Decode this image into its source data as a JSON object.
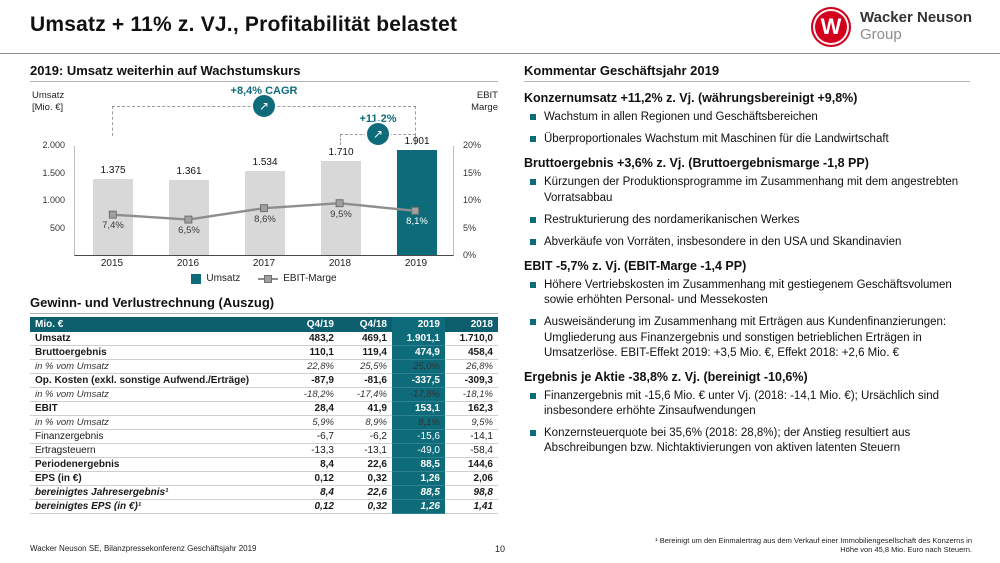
{
  "meta": {
    "colors": {
      "accent": "#0e6b7a",
      "accent-dark": "#0d5f6e",
      "brand-red": "#d2001c",
      "bar-gray": "#d8d8d8",
      "line-gray": "#8e8e8e"
    },
    "icons": {
      "growth_arrow": "↗"
    }
  },
  "header": {
    "title": "Umsatz + 11% z. VJ., Profitabilität belastet",
    "logo": {
      "letter": "W",
      "name": "Wacker Neuson",
      "sub": "Group"
    }
  },
  "left": {
    "chart_heading": "2019: Umsatz weiterhin auf Wachstumskurs",
    "axis_left": [
      "Umsatz",
      "[Mio. €]"
    ],
    "axis_right": [
      "EBIT",
      "Marge"
    ],
    "legend": [
      "Umsatz",
      "EBIT-Marge"
    ],
    "table_heading": "Gewinn- und Verlustrechnung (Auszug)"
  },
  "chart_data": {
    "type": "bar+line",
    "categories": [
      "2015",
      "2016",
      "2017",
      "2018",
      "2019"
    ],
    "series": [
      {
        "name": "Umsatz",
        "type": "bar",
        "axis": "left",
        "values": [
          1375,
          1361,
          1534,
          1710,
          1901
        ],
        "labels": [
          "1.375",
          "1.361",
          "1.534",
          "1.710",
          "1.901"
        ]
      },
      {
        "name": "EBIT-Marge",
        "type": "line",
        "axis": "right",
        "values": [
          7.4,
          6.5,
          8.6,
          9.5,
          8.1
        ],
        "labels": [
          "7,4%",
          "6,5%",
          "8,6%",
          "9,5%",
          "8,1%"
        ]
      }
    ],
    "left_axis": {
      "title": "Umsatz [Mio. €]",
      "max": 2000,
      "ticks": [
        {
          "label": "2.000",
          "value": 2000
        },
        {
          "label": "1.500",
          "value": 1500
        },
        {
          "label": "1.000",
          "value": 1000
        },
        {
          "label": "500",
          "value": 500
        }
      ]
    },
    "right_axis": {
      "title": "EBIT Marge",
      "max": 20,
      "ticks": [
        {
          "label": "20%",
          "value": 20
        },
        {
          "label": "15%",
          "value": 15
        },
        {
          "label": "10%",
          "value": 10
        },
        {
          "label": "5%",
          "value": 5
        },
        {
          "label": "0%",
          "value": 0
        }
      ]
    },
    "annotations": [
      {
        "label": "+8,4% CAGR",
        "from": "2015",
        "to": "2019"
      },
      {
        "label": "+11,2%",
        "from": "2018",
        "to": "2019"
      }
    ],
    "highlight_category": "2019",
    "legend_position": "bottom",
    "grid": false
  },
  "table": {
    "columns": [
      "Mio. €",
      "Q4/19",
      "Q4/18",
      "2019",
      "2018"
    ],
    "highlight_column": "2019",
    "rows": [
      {
        "label": "Umsatz",
        "style": "bold",
        "cells": [
          "483,2",
          "469,1",
          "1.901,1",
          "1.710,0"
        ]
      },
      {
        "label": "Bruttoergebnis",
        "style": "bold",
        "cells": [
          "110,1",
          "119,4",
          "474,9",
          "458,4"
        ]
      },
      {
        "label": "in % vom Umsatz",
        "style": "italic",
        "cells": [
          "22,8%",
          "25,5%",
          "25,0%",
          "26,8%"
        ]
      },
      {
        "label": "Op. Kosten (exkl. sonstige Aufwend./Erträge)",
        "style": "bold",
        "cells": [
          "-87,9",
          "-81,6",
          "-337,5",
          "-309,3"
        ]
      },
      {
        "label": "in % vom Umsatz",
        "style": "italic",
        "cells": [
          "-18,2%",
          "-17,4%",
          "-17,8%",
          "-18,1%"
        ]
      },
      {
        "label": "EBIT",
        "style": "bold",
        "cells": [
          "28,4",
          "41,9",
          "153,1",
          "162,3"
        ]
      },
      {
        "label": "in % vom Umsatz",
        "style": "italic",
        "cells": [
          "5,9%",
          "8,9%",
          "8,1%",
          "9,5%"
        ]
      },
      {
        "label": "Finanzergebnis",
        "style": "normal",
        "cells": [
          "-6,7",
          "-6,2",
          "-15,6",
          "-14,1"
        ]
      },
      {
        "label": "Ertragsteuern",
        "style": "normal",
        "cells": [
          "-13,3",
          "-13,1",
          "-49,0",
          "-58,4"
        ]
      },
      {
        "label": "Periodenergebnis",
        "style": "bold",
        "cells": [
          "8,4",
          "22,6",
          "88,5",
          "144,6"
        ]
      },
      {
        "label": "EPS (in €)",
        "style": "bold",
        "cells": [
          "0,12",
          "0,32",
          "1,26",
          "2,06"
        ]
      },
      {
        "label": "bereinigtes Jahresergebnis¹",
        "style": "bold-italic",
        "cells": [
          "8,4",
          "22,6",
          "88,5",
          "98,8"
        ]
      },
      {
        "label": "bereinigtes EPS (in €)¹",
        "style": "bold-italic",
        "cells": [
          "0,12",
          "0,32",
          "1,26",
          "1,41"
        ]
      }
    ]
  },
  "comments": {
    "heading": "Kommentar Geschäftsjahr 2019",
    "blocks": [
      {
        "title": "Konzernumsatz +11,2% z. Vj. (währungsbereinigt +9,8%)",
        "bullets": [
          "Wachstum in allen Regionen und Geschäftsbereichen",
          "Überproportionales Wachstum mit Maschinen für die Landwirtschaft"
        ]
      },
      {
        "title": "Bruttoergebnis +3,6% z. Vj. (Bruttoergebnismarge -1,8 PP)",
        "bullets": [
          "Kürzungen der Produktionsprogramme im Zusammenhang mit dem angestrebten Vorratsabbau",
          "Restrukturierung des nordamerikanischen Werkes",
          "Abverkäufe von Vorräten, insbesondere in den USA und Skandinavien"
        ]
      },
      {
        "title": "EBIT -5,7% z. Vj. (EBIT-Marge -1,4 PP)",
        "bullets": [
          "Höhere Vertriebskosten im Zusammenhang mit gestiegenem Geschäftsvolumen sowie erhöhten Personal- und Messekosten",
          "Ausweisänderung im Zusammenhang mit Erträgen aus Kundenfinanzierungen: Umgliederung aus Finanzergebnis und sonstigen betrieblichen Erträgen in Umsatzerlöse. EBIT-Effekt 2019: +3,5 Mio. €, Effekt 2018: +2,6 Mio. €"
        ]
      },
      {
        "title": "Ergebnis je Aktie -38,8% z. Vj. (bereinigt -10,6%)",
        "bullets": [
          "Finanzergebnis mit -15,6 Mio. € unter Vj. (2018: -14,1 Mio. €); Ursächlich sind insbesondere erhöhte Zinsaufwendungen",
          "Konzernsteuerquote bei 35,6% (2018: 28,8%); der Anstieg resultiert aus Abschreibungen bzw. Nichtaktivierungen von aktiven latenten Steuern"
        ]
      }
    ]
  },
  "footer": {
    "source": "Wacker Neuson SE, Bilanzpressekonferenz Geschäftsjahr 2019",
    "page": "10",
    "footnote": "¹ Bereinigt um den Einmalertrag aus dem Verkauf einer Immobiliengesellschaft des Konzerns in Höhe von 45,8 Mio. Euro nach Steuern."
  }
}
